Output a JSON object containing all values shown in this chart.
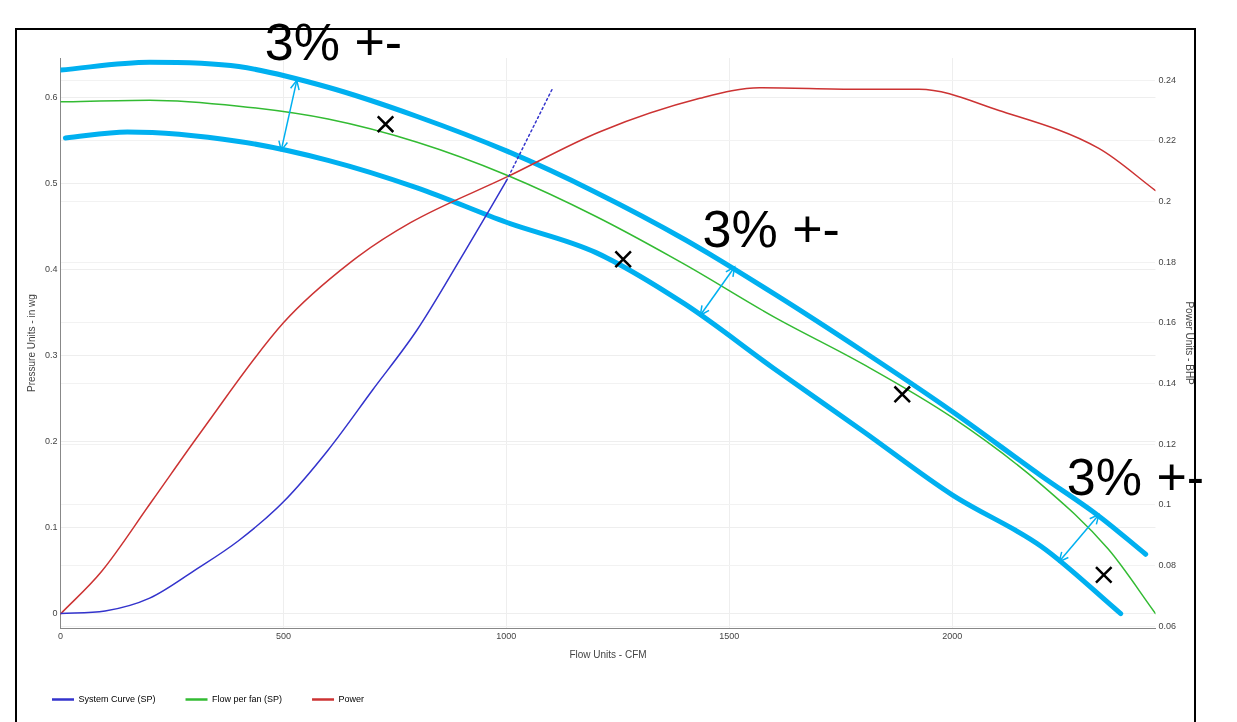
{
  "chart_data": {
    "type": "line",
    "xlabel": "Flow Units - CFM",
    "ylabel": "Pressure Units - in wg",
    "y2label": "Power Units - BHP",
    "xlim": [
      0,
      2456
    ],
    "xticks": [
      0,
      500,
      1000,
      1500,
      2000
    ],
    "ylim": [
      -0.017,
      0.646
    ],
    "yticks": [
      0,
      0.1,
      0.2,
      0.3,
      0.4,
      0.5,
      0.6
    ],
    "y2lim": [
      0.0593,
      0.2473
    ],
    "y2ticks": [
      0.06,
      0.08,
      0.1,
      0.12,
      0.14,
      0.16,
      0.18,
      0.2,
      0.22,
      0.24
    ],
    "grid": true,
    "legend": "bottom left",
    "marker": "none",
    "line_style": "solid",
    "series": [
      {
        "name": "System Curve (SP)",
        "color": "#3333cc",
        "x": [
          0,
          100,
          200,
          300,
          400,
          500,
          600,
          700,
          800,
          900,
          1000
        ],
        "values": [
          0,
          0.003,
          0.018,
          0.05,
          0.085,
          0.13,
          0.19,
          0.26,
          0.33,
          0.415,
          0.503
        ]
      },
      {
        "color": "#3333cc",
        "line_style": "dotted",
        "x": [
          1000,
          1050,
          1103
        ],
        "values": [
          0.503,
          0.555,
          0.61
        ]
      },
      {
        "name": "Flow per fan (SP)",
        "color": "#33bb33",
        "x": [
          0,
          200,
          400,
          600,
          800,
          1000,
          1200,
          1400,
          1600,
          1800,
          2000,
          2200,
          2350,
          2456
        ],
        "values": [
          0.595,
          0.597,
          0.59,
          0.575,
          0.548,
          0.51,
          0.462,
          0.406,
          0.345,
          0.29,
          0.228,
          0.15,
          0.075,
          0
        ]
      },
      {
        "name": "Power",
        "color": "#cc3333",
        "axis": "y2",
        "x": [
          0,
          92,
          204,
          315,
          500,
          651,
          785,
          1000,
          1210,
          1434,
          1568,
          1790,
          1926,
          2105,
          2329,
          2456
        ],
        "values": [
          0.064,
          0.078,
          0.101,
          0.124,
          0.16,
          0.18,
          0.193,
          0.208,
          0.223,
          0.234,
          0.2375,
          0.237,
          0.237,
          0.23,
          0.2175,
          0.2036
        ]
      },
      {
        "color": "#00b0f0",
        "x": [
          0,
          200,
          400,
          600,
          800,
          1000,
          1200,
          1400,
          1600,
          1800,
          2000,
          2200,
          2330,
          2434
        ],
        "values": [
          0.632,
          0.641,
          0.636,
          0.612,
          0.578,
          0.538,
          0.49,
          0.435,
          0.372,
          0.305,
          0.235,
          0.16,
          0.113,
          0.069
        ]
      },
      {
        "color": "#00b0f0",
        "x": [
          11,
          150,
          400,
          600,
          800,
          1000,
          1200,
          1400,
          1600,
          1800,
          2000,
          2200,
          2378
        ],
        "values": [
          0.553,
          0.56,
          0.549,
          0.527,
          0.495,
          0.455,
          0.42,
          0.36,
          0.285,
          0.212,
          0.138,
          0.078,
          0
        ]
      },
      {
        "type": "scatter",
        "color": "#000000",
        "marker": "cross",
        "x": [
          729,
          1262,
          1888,
          2340
        ],
        "values": [
          0.569,
          0.412,
          0.255,
          0.045
        ]
      }
    ],
    "annotations": [
      {
        "text": "3% +-",
        "x": 530,
        "y": 0.62
      },
      {
        "text": "3% +-",
        "x": 1512,
        "y": 0.403
      },
      {
        "text": "3% +-",
        "x": 2329,
        "y": 0.115
      }
    ]
  }
}
